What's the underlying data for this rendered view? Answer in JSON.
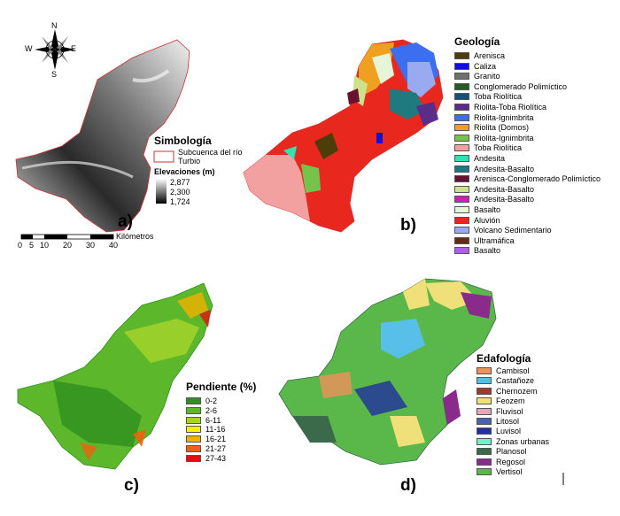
{
  "panels": {
    "a": {
      "label": "a)",
      "legend_title": "Simbología",
      "boundary_label": "Subcuenca del río Turbio",
      "elevation_title": "Elevaciones (m)",
      "elevation_values": [
        "2,877",
        "2,300",
        "1,724"
      ],
      "compass": {
        "n": "N",
        "s": "S",
        "e": "E",
        "w": "W"
      },
      "scale": {
        "ticks": [
          "0",
          "5",
          "10",
          "20",
          "30",
          "40"
        ],
        "unit": "Kilómetros"
      }
    },
    "b": {
      "label": "b)",
      "legend_title": "Geología",
      "items": [
        {
          "name": "Arenisca",
          "color": "#4d3d09"
        },
        {
          "name": "Caliza",
          "color": "#1010e0"
        },
        {
          "name": "Granito",
          "color": "#707070"
        },
        {
          "name": "Conglomerado  Polimíctico",
          "color": "#245a24"
        },
        {
          "name": "Toba Riolítica",
          "color": "#11517a"
        },
        {
          "name": "Riolita-Toba Riolítica",
          "color": "#5a2d8a"
        },
        {
          "name": "Riolita-Ignimbrita",
          "color": "#3b6ff0"
        },
        {
          "name": "Riolita (Domos)",
          "color": "#f0a020"
        },
        {
          "name": "Riolita-Ignimbrita",
          "color": "#74c44b"
        },
        {
          "name": "Toba Riolítica",
          "color": "#f2a0a0"
        },
        {
          "name": "Andesita",
          "color": "#32e0b0"
        },
        {
          "name": "Andesita-Basalto",
          "color": "#1f7a80"
        },
        {
          "name": "Arenisca-Conglomerado  Polimíctico",
          "color": "#6a1030"
        },
        {
          "name": "Andesita-Basalto",
          "color": "#cde08a"
        },
        {
          "name": "Andesita-Basalto",
          "color": "#d020b0"
        },
        {
          "name": "Basalto",
          "color": "#e6f5d8"
        },
        {
          "name": "Aluvión",
          "color": "#e8281e"
        },
        {
          "name": "Volcano Sedimentario",
          "color": "#9aaaf0"
        },
        {
          "name": "Ultramáfica",
          "color": "#6a2a10"
        },
        {
          "name": "Basalto",
          "color": "#b060e0"
        }
      ]
    },
    "c": {
      "label": "c)",
      "legend_title": "Pendiente (%)",
      "items": [
        {
          "name": "0-2",
          "color": "#2f8f1f"
        },
        {
          "name": "2-6",
          "color": "#5cb82a"
        },
        {
          "name": "6-11",
          "color": "#a8d42a"
        },
        {
          "name": "11-16",
          "color": "#f4f000"
        },
        {
          "name": "16-21",
          "color": "#f4b000"
        },
        {
          "name": "21-27",
          "color": "#f06010"
        },
        {
          "name": "27-43",
          "color": "#e01010"
        }
      ]
    },
    "d": {
      "label": "d)",
      "legend_title": "Edafología",
      "items": [
        {
          "name": "Cambisol",
          "color": "#f0905a"
        },
        {
          "name": "Castañoze",
          "color": "#58c0e8"
        },
        {
          "name": "Chernozem",
          "color": "#a03a2a"
        },
        {
          "name": "Feozem",
          "color": "#f0e07a"
        },
        {
          "name": "Fluvisol",
          "color": "#f0a0b8"
        },
        {
          "name": "Litosol",
          "color": "#4a60b0"
        },
        {
          "name": "Luvisol",
          "color": "#2030a0"
        },
        {
          "name": "Zonas urbanas",
          "color": "#70f0c8"
        },
        {
          "name": "Planosol",
          "color": "#3a6a4a"
        },
        {
          "name": "Regosol",
          "color": "#8a2a8a"
        },
        {
          "name": "Vertisol",
          "color": "#5ab84a"
        }
      ]
    }
  }
}
